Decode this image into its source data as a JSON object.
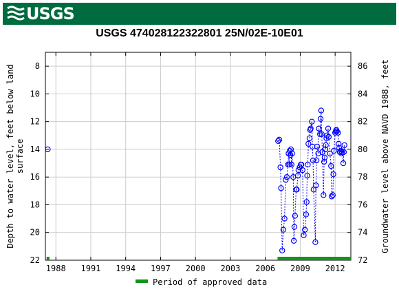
{
  "header": {
    "logo_text": "USGS"
  },
  "colors": {
    "banner": "#006b3f",
    "points": "#0000ff",
    "approved_period": "#109618"
  },
  "chart_data": {
    "type": "scatter",
    "title": "USGS 474028122322801 25N/02E-10E01",
    "ylabel_left_lines": [
      "Depth to water level, feet below land",
      "surface"
    ],
    "ylabel_right": "Groundwater level above NAVD 1988, feet",
    "xlim": [
      1987.1,
      2013.35
    ],
    "ylim_left": [
      22,
      7
    ],
    "ylim_right": [
      72,
      87
    ],
    "x_ticks": [
      1988,
      1991,
      1994,
      1997,
      2000,
      2003,
      2006,
      2009,
      2012
    ],
    "x_tick_labels": [
      "1988",
      "1991",
      "1994",
      "1997",
      "2000",
      "2003",
      "2006",
      "2009",
      "2012"
    ],
    "y_left_ticks": [
      8,
      10,
      12,
      14,
      16,
      18,
      20,
      22
    ],
    "y_right_ticks": [
      72,
      74,
      76,
      78,
      80,
      82,
      84,
      86
    ],
    "grid": true,
    "legend": {
      "label": "Period of approved data",
      "placement": "bottom-center"
    },
    "approved_periods": [
      [
        1987.2,
        1987.45
      ],
      [
        2007.05,
        2013.35
      ]
    ],
    "series": [
      {
        "marker": "circle",
        "x": [
          1987.3,
          2007.1,
          2007.2,
          2007.3,
          2007.35,
          2007.45,
          2007.55,
          2007.65,
          2007.75,
          2007.85,
          2007.95,
          2008.0,
          2008.05,
          2008.1,
          2008.15,
          2008.2,
          2008.25,
          2008.3,
          2008.4,
          2008.45,
          2008.5,
          2008.55,
          2008.65,
          2008.7,
          2008.8,
          2008.85,
          2008.95,
          2009.05,
          2009.1,
          2009.2,
          2009.3,
          2009.4,
          2009.5,
          2009.55,
          2009.6,
          2009.65,
          2009.7,
          2009.8,
          2009.85,
          2009.9,
          2010.0,
          2010.05,
          2010.1,
          2010.15,
          2010.3,
          2010.35,
          2010.4,
          2010.45,
          2010.55,
          2010.6,
          2010.7,
          2010.75,
          2010.8,
          2010.85,
          2010.9,
          2011.0,
          2011.05,
          2011.1,
          2011.15,
          2011.2,
          2011.25,
          2011.3,
          2011.4,
          2011.45,
          2011.55,
          2011.65,
          2011.7,
          2011.8,
          2011.85,
          2011.9,
          2012.0,
          2012.05,
          2012.1,
          2012.15,
          2012.25,
          2012.3,
          2012.35,
          2012.4,
          2012.5,
          2012.55,
          2012.6,
          2012.7,
          2012.75,
          2012.8
        ],
        "y": [
          14.0,
          13.4,
          13.3,
          15.3,
          16.8,
          21.3,
          19.8,
          19.0,
          16.2,
          16.0,
          15.1,
          14.3,
          15.1,
          14.1,
          14.4,
          14.0,
          15.1,
          14.3,
          16.0,
          20.6,
          19.6,
          18.8,
          16.9,
          16.9,
          15.9,
          15.5,
          15.3,
          15.1,
          15.1,
          15.5,
          20.2,
          19.8,
          18.7,
          17.8,
          15.9,
          15.1,
          13.6,
          13.2,
          12.6,
          12.5,
          12.0,
          13.8,
          14.8,
          16.9,
          20.7,
          16.6,
          14.8,
          13.8,
          14.3,
          12.5,
          12.9,
          11.8,
          11.2,
          12.9,
          14.2,
          17.3,
          14.9,
          14.6,
          14.0,
          13.7,
          13.2,
          13.0,
          12.5,
          13.1,
          14.3,
          15.2,
          17.4,
          17.3,
          15.8,
          14.1,
          12.8,
          12.7,
          12.6,
          12.7,
          12.8,
          13.6,
          13.9,
          14.2,
          14.1,
          14.3,
          14.2,
          15.0,
          14.2,
          13.7
        ]
      }
    ]
  }
}
